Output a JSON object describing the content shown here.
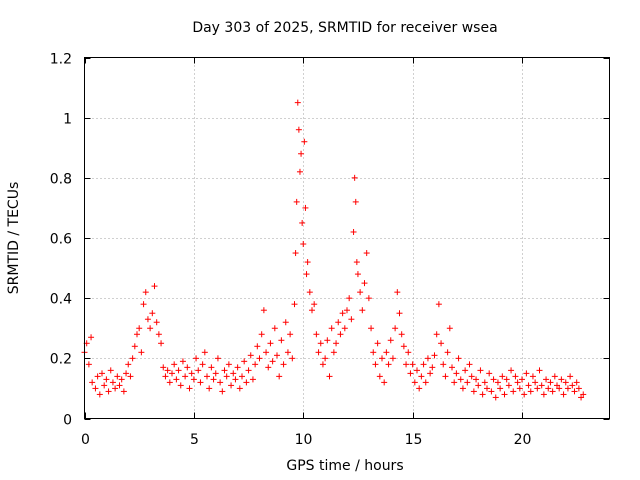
{
  "chart_data": {
    "type": "scatter",
    "title": "Day 303 of 2025, SRMTID for receiver wsea",
    "xlabel": "GPS time / hours",
    "ylabel": "SRMTID / TECUs",
    "xlim": [
      0,
      24
    ],
    "ylim": [
      0,
      1.2
    ],
    "xticks": [
      0,
      5,
      10,
      15,
      20
    ],
    "yticks": [
      0,
      0.2,
      0.4,
      0.6,
      0.8,
      1,
      1.2
    ],
    "xtick_labels": [
      "0",
      "5",
      "10",
      "15",
      "20"
    ],
    "ytick_labels": [
      "0",
      "0.2",
      "0.4",
      "0.6",
      "0.8",
      "1",
      "1.2"
    ],
    "grid": true,
    "marker": "+",
    "color": "#ff0000",
    "series": [
      {
        "name": "SRMTID",
        "points": [
          [
            0.0,
            0.22
          ],
          [
            0.1,
            0.25
          ],
          [
            0.2,
            0.18
          ],
          [
            0.3,
            0.27
          ],
          [
            0.35,
            0.12
          ],
          [
            0.5,
            0.1
          ],
          [
            0.6,
            0.14
          ],
          [
            0.7,
            0.08
          ],
          [
            0.8,
            0.15
          ],
          [
            0.9,
            0.11
          ],
          [
            1.0,
            0.13
          ],
          [
            1.1,
            0.09
          ],
          [
            1.2,
            0.16
          ],
          [
            1.3,
            0.12
          ],
          [
            1.4,
            0.1
          ],
          [
            1.5,
            0.14
          ],
          [
            1.6,
            0.11
          ],
          [
            1.7,
            0.13
          ],
          [
            1.8,
            0.09
          ],
          [
            1.9,
            0.15
          ],
          [
            2.0,
            0.18
          ],
          [
            2.1,
            0.14
          ],
          [
            2.2,
            0.2
          ],
          [
            2.3,
            0.24
          ],
          [
            2.4,
            0.28
          ],
          [
            2.5,
            0.3
          ],
          [
            2.6,
            0.22
          ],
          [
            2.7,
            0.38
          ],
          [
            2.8,
            0.42
          ],
          [
            2.9,
            0.33
          ],
          [
            3.0,
            0.3
          ],
          [
            3.1,
            0.35
          ],
          [
            3.2,
            0.44
          ],
          [
            3.3,
            0.32
          ],
          [
            3.4,
            0.28
          ],
          [
            3.5,
            0.25
          ],
          [
            3.6,
            0.17
          ],
          [
            3.7,
            0.14
          ],
          [
            3.8,
            0.16
          ],
          [
            3.9,
            0.12
          ],
          [
            4.0,
            0.15
          ],
          [
            4.1,
            0.18
          ],
          [
            4.2,
            0.13
          ],
          [
            4.3,
            0.16
          ],
          [
            4.4,
            0.11
          ],
          [
            4.5,
            0.19
          ],
          [
            4.6,
            0.14
          ],
          [
            4.7,
            0.17
          ],
          [
            4.8,
            0.1
          ],
          [
            4.9,
            0.15
          ],
          [
            5.0,
            0.13
          ],
          [
            5.1,
            0.2
          ],
          [
            5.2,
            0.16
          ],
          [
            5.3,
            0.12
          ],
          [
            5.4,
            0.18
          ],
          [
            5.5,
            0.22
          ],
          [
            5.6,
            0.14
          ],
          [
            5.7,
            0.1
          ],
          [
            5.8,
            0.17
          ],
          [
            5.9,
            0.13
          ],
          [
            6.0,
            0.15
          ],
          [
            6.1,
            0.2
          ],
          [
            6.2,
            0.12
          ],
          [
            6.3,
            0.09
          ],
          [
            6.4,
            0.16
          ],
          [
            6.5,
            0.14
          ],
          [
            6.6,
            0.18
          ],
          [
            6.7,
            0.11
          ],
          [
            6.8,
            0.15
          ],
          [
            6.9,
            0.13
          ],
          [
            7.0,
            0.17
          ],
          [
            7.1,
            0.1
          ],
          [
            7.2,
            0.14
          ],
          [
            7.3,
            0.19
          ],
          [
            7.4,
            0.12
          ],
          [
            7.5,
            0.16
          ],
          [
            7.6,
            0.21
          ],
          [
            7.7,
            0.13
          ],
          [
            7.8,
            0.18
          ],
          [
            7.9,
            0.24
          ],
          [
            8.0,
            0.2
          ],
          [
            8.1,
            0.28
          ],
          [
            8.2,
            0.36
          ],
          [
            8.3,
            0.22
          ],
          [
            8.4,
            0.17
          ],
          [
            8.5,
            0.25
          ],
          [
            8.6,
            0.19
          ],
          [
            8.7,
            0.3
          ],
          [
            8.8,
            0.21
          ],
          [
            8.9,
            0.14
          ],
          [
            9.0,
            0.26
          ],
          [
            9.1,
            0.18
          ],
          [
            9.2,
            0.32
          ],
          [
            9.3,
            0.22
          ],
          [
            9.4,
            0.28
          ],
          [
            9.5,
            0.2
          ],
          [
            9.6,
            0.38
          ],
          [
            9.65,
            0.55
          ],
          [
            9.7,
            0.72
          ],
          [
            9.75,
            1.05
          ],
          [
            9.8,
            0.96
          ],
          [
            9.85,
            0.82
          ],
          [
            9.9,
            0.88
          ],
          [
            9.95,
            0.65
          ],
          [
            10.0,
            0.58
          ],
          [
            10.05,
            0.92
          ],
          [
            10.1,
            0.7
          ],
          [
            10.15,
            0.48
          ],
          [
            10.2,
            0.52
          ],
          [
            10.3,
            0.42
          ],
          [
            10.4,
            0.36
          ],
          [
            10.5,
            0.38
          ],
          [
            10.6,
            0.28
          ],
          [
            10.7,
            0.22
          ],
          [
            10.8,
            0.25
          ],
          [
            10.9,
            0.18
          ],
          [
            11.0,
            0.2
          ],
          [
            11.1,
            0.26
          ],
          [
            11.2,
            0.14
          ],
          [
            11.3,
            0.3
          ],
          [
            11.4,
            0.22
          ],
          [
            11.5,
            0.25
          ],
          [
            11.6,
            0.32
          ],
          [
            11.7,
            0.28
          ],
          [
            11.8,
            0.35
          ],
          [
            11.9,
            0.3
          ],
          [
            12.0,
            0.36
          ],
          [
            12.1,
            0.4
          ],
          [
            12.2,
            0.33
          ],
          [
            12.3,
            0.62
          ],
          [
            12.35,
            0.8
          ],
          [
            12.4,
            0.72
          ],
          [
            12.45,
            0.52
          ],
          [
            12.5,
            0.48
          ],
          [
            12.6,
            0.42
          ],
          [
            12.7,
            0.36
          ],
          [
            12.8,
            0.45
          ],
          [
            12.9,
            0.55
          ],
          [
            13.0,
            0.4
          ],
          [
            13.1,
            0.3
          ],
          [
            13.2,
            0.22
          ],
          [
            13.3,
            0.18
          ],
          [
            13.4,
            0.25
          ],
          [
            13.5,
            0.14
          ],
          [
            13.6,
            0.2
          ],
          [
            13.7,
            0.12
          ],
          [
            13.8,
            0.22
          ],
          [
            13.9,
            0.18
          ],
          [
            14.0,
            0.26
          ],
          [
            14.1,
            0.2
          ],
          [
            14.2,
            0.3
          ],
          [
            14.3,
            0.42
          ],
          [
            14.4,
            0.35
          ],
          [
            14.5,
            0.28
          ],
          [
            14.6,
            0.24
          ],
          [
            14.7,
            0.18
          ],
          [
            14.8,
            0.22
          ],
          [
            14.9,
            0.15
          ],
          [
            15.0,
            0.18
          ],
          [
            15.1,
            0.12
          ],
          [
            15.2,
            0.16
          ],
          [
            15.3,
            0.1
          ],
          [
            15.4,
            0.14
          ],
          [
            15.5,
            0.18
          ],
          [
            15.6,
            0.12
          ],
          [
            15.7,
            0.2
          ],
          [
            15.8,
            0.15
          ],
          [
            15.9,
            0.17
          ],
          [
            16.0,
            0.21
          ],
          [
            16.1,
            0.28
          ],
          [
            16.2,
            0.38
          ],
          [
            16.3,
            0.25
          ],
          [
            16.4,
            0.18
          ],
          [
            16.5,
            0.14
          ],
          [
            16.6,
            0.22
          ],
          [
            16.7,
            0.3
          ],
          [
            16.8,
            0.17
          ],
          [
            16.9,
            0.12
          ],
          [
            17.0,
            0.15
          ],
          [
            17.1,
            0.2
          ],
          [
            17.2,
            0.13
          ],
          [
            17.3,
            0.1
          ],
          [
            17.4,
            0.16
          ],
          [
            17.5,
            0.12
          ],
          [
            17.6,
            0.18
          ],
          [
            17.7,
            0.14
          ],
          [
            17.8,
            0.09
          ],
          [
            17.9,
            0.13
          ],
          [
            18.0,
            0.11
          ],
          [
            18.1,
            0.16
          ],
          [
            18.2,
            0.08
          ],
          [
            18.3,
            0.12
          ],
          [
            18.4,
            0.1
          ],
          [
            18.5,
            0.15
          ],
          [
            18.6,
            0.09
          ],
          [
            18.7,
            0.13
          ],
          [
            18.8,
            0.07
          ],
          [
            18.9,
            0.12
          ],
          [
            19.0,
            0.1
          ],
          [
            19.1,
            0.14
          ],
          [
            19.2,
            0.08
          ],
          [
            19.3,
            0.13
          ],
          [
            19.4,
            0.11
          ],
          [
            19.5,
            0.16
          ],
          [
            19.6,
            0.09
          ],
          [
            19.7,
            0.14
          ],
          [
            19.8,
            0.12
          ],
          [
            19.9,
            0.1
          ],
          [
            20.0,
            0.13
          ],
          [
            20.1,
            0.08
          ],
          [
            20.2,
            0.15
          ],
          [
            20.3,
            0.11
          ],
          [
            20.4,
            0.09
          ],
          [
            20.5,
            0.14
          ],
          [
            20.6,
            0.12
          ],
          [
            20.7,
            0.1
          ],
          [
            20.8,
            0.16
          ],
          [
            20.9,
            0.11
          ],
          [
            21.0,
            0.08
          ],
          [
            21.1,
            0.13
          ],
          [
            21.2,
            0.1
          ],
          [
            21.3,
            0.12
          ],
          [
            21.4,
            0.09
          ],
          [
            21.5,
            0.14
          ],
          [
            21.6,
            0.11
          ],
          [
            21.7,
            0.1
          ],
          [
            21.8,
            0.13
          ],
          [
            21.9,
            0.08
          ],
          [
            22.0,
            0.12
          ],
          [
            22.1,
            0.1
          ],
          [
            22.2,
            0.14
          ],
          [
            22.3,
            0.11
          ],
          [
            22.4,
            0.09
          ],
          [
            22.5,
            0.12
          ],
          [
            22.6,
            0.1
          ],
          [
            22.7,
            0.07
          ],
          [
            22.8,
            0.08
          ]
        ]
      }
    ]
  }
}
